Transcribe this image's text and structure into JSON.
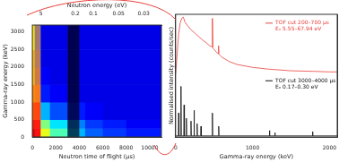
{
  "chart_data": [
    {
      "type": "heatmap",
      "xlabel": "Neutron time of flight (µs)",
      "ylabel": "Gamma-ray energy (keV)",
      "x2label": "Neutron energy (eV)",
      "xlim": [
        0,
        11000
      ],
      "xticks": [
        0,
        2000,
        4000,
        6000,
        8000,
        10000
      ],
      "ylim": [
        0,
        3200
      ],
      "yticks": [
        0,
        500,
        1000,
        1500,
        2000,
        2500,
        3000
      ],
      "x2ticks": [
        {
          "value": 735,
          "label": "5"
        },
        {
          "value": 3674,
          "label": "0.2"
        },
        {
          "value": 5196,
          "label": "0.1"
        },
        {
          "value": 7348,
          "label": "0.05"
        },
        {
          "value": 9487,
          "label": "0.03"
        }
      ],
      "x_edges": [
        0,
        200,
        700,
        1500,
        3000,
        4500,
        6000,
        8000,
        11000
      ],
      "y_edges": [
        0,
        250,
        500,
        1000,
        1500,
        2000,
        2500,
        3200
      ],
      "zlim": [
        0,
        1
      ],
      "z": [
        [
          0.9,
          0.9,
          0.6,
          0.45,
          0.3,
          0.22,
          0.18,
          0.15
        ],
        [
          0.85,
          0.85,
          0.5,
          0.35,
          0.25,
          0.18,
          0.15,
          0.12
        ],
        [
          0.8,
          0.75,
          0.3,
          0.2,
          0.15,
          0.12,
          0.1,
          0.1
        ],
        [
          0.75,
          0.6,
          0.15,
          0.12,
          0.1,
          0.1,
          0.1,
          0.1
        ],
        [
          0.7,
          0.5,
          0.12,
          0.1,
          0.1,
          0.1,
          0.1,
          0.1
        ],
        [
          0.7,
          0.45,
          0.1,
          0.1,
          0.1,
          0.1,
          0.1,
          0.1
        ],
        [
          0.65,
          0.4,
          0.1,
          0.1,
          0.1,
          0.1,
          0.1,
          0.1
        ]
      ],
      "bands": [
        {
          "range": [
            200,
            700
          ],
          "color": "#ff2020"
        },
        {
          "range": [
            3000,
            4000
          ],
          "color": "#000000"
        }
      ]
    },
    {
      "type": "line",
      "xlabel": "Gamma-ray energy (keV)",
      "ylabel": "Normalised intensity (counts/sec)",
      "xlim": [
        0,
        2100
      ],
      "xticks": [
        0,
        1000,
        2000
      ],
      "ylim": [
        0,
        2.3
      ],
      "y2lim": [
        -1.1,
        1.05
      ],
      "tick_labels": "x",
      "series": [
        {
          "name": "TOF cut 200–700 µs",
          "annotation": "Eₙ 5.55–67.94 eV",
          "color": "#e8403a",
          "axis": "y2",
          "x": [
            0,
            20,
            40,
            60,
            80,
            100,
            120,
            150,
            200,
            250,
            300,
            350,
            400,
            440,
            470,
            478,
            486,
            520,
            553,
            558,
            563,
            600,
            700,
            800,
            1000,
            1200,
            1500,
            1800,
            2000,
            2100
          ],
          "values": [
            0.0,
            0.35,
            0.7,
            0.9,
            0.98,
            1.0,
            0.92,
            0.86,
            0.78,
            0.72,
            0.66,
            0.6,
            0.55,
            0.5,
            0.48,
            0.98,
            0.46,
            0.4,
            0.36,
            0.5,
            0.35,
            0.3,
            0.22,
            0.17,
            0.12,
            0.09,
            0.06,
            0.05,
            0.04,
            0.04
          ]
        },
        {
          "name": "TOF cut 3000–4000 µs",
          "annotation": "Eₙ 0.17–0.30 eV",
          "color": "#111111",
          "x": [
            0,
            36,
            40,
            44,
            66,
            70,
            74,
            106,
            110,
            114,
            136,
            140,
            144,
            196,
            200,
            204,
            236,
            240,
            244,
            276,
            280,
            284,
            326,
            330,
            334,
            474,
            478,
            482,
            556,
            560,
            564,
            1216,
            1220,
            1224,
            1286,
            1290,
            1294,
            1776,
            1780,
            1784,
            2100
          ],
          "values": [
            0.02,
            0.02,
            0.45,
            0.02,
            0.02,
            0.95,
            0.02,
            0.02,
            0.6,
            0.02,
            0.02,
            0.35,
            0.02,
            0.02,
            0.3,
            0.02,
            0.02,
            0.5,
            0.02,
            0.02,
            0.25,
            0.02,
            0.02,
            0.2,
            0.02,
            0.02,
            0.45,
            0.02,
            0.02,
            0.2,
            0.02,
            0.02,
            0.12,
            0.02,
            0.02,
            0.08,
            0.02,
            0.02,
            0.1,
            0.02,
            0.02
          ]
        }
      ]
    }
  ]
}
